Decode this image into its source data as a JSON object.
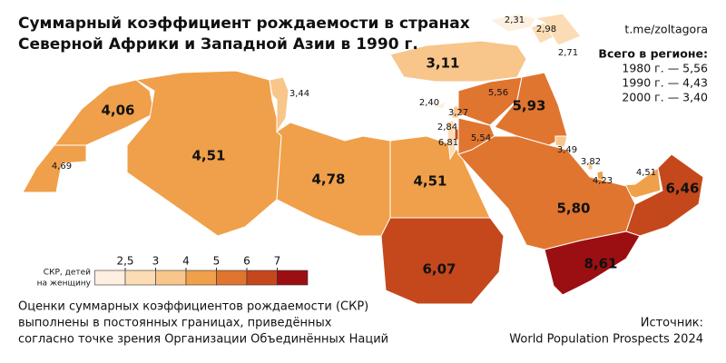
{
  "title": [
    "Суммарный коэффициент рождаемости в странах",
    "Северной Африки и Западной Азии в 1990 г."
  ],
  "handle": "t.me/zoltagora",
  "summary": {
    "heading": "Всего в регионе:",
    "lines": [
      "1980 г. — 5,56",
      "1990 г. — 4,43",
      "2000 г. — 3,40"
    ]
  },
  "regions": {
    "values": [
      4.69,
      4.06,
      4.51,
      3.44,
      4.78,
      4.51,
      6.07,
      3.11,
      2.31,
      2.98,
      2.71,
      2.4,
      3.27,
      2.84,
      6.81,
      5.54,
      5.56,
      5.93,
      3.49,
      3.82,
      4.23,
      4.51,
      5.8,
      6.46,
      8.61
    ],
    "value_labels": [
      "4,69",
      "4,06",
      "4,51",
      "3,44",
      "4,78",
      "4,51",
      "6,07",
      "3,11",
      "2,31",
      "2,98",
      "2,71",
      "2,40",
      "3,27",
      "2,84",
      "6,81",
      "5,54",
      "5,56",
      "5,93",
      "3,49",
      "3,82",
      "4,23",
      "4,51",
      "5,80",
      "6,46",
      "8,61"
    ]
  },
  "legend": {
    "title": [
      "СКР, детей",
      "на женщину"
    ],
    "ticks": [
      {
        "value": 2.5,
        "label": "2,5"
      },
      3,
      4,
      5,
      6,
      7
    ],
    "colors": [
      "#fdf0e0",
      "#fbdcb4",
      "#f8c68a",
      "#f0a04a",
      "#e07530",
      "#c4481b",
      "#9b0f12"
    ]
  },
  "note": [
    "Оценки суммарных коэффициентов рождаемости (СКР)",
    "выполнены в постоянных границах, приведённых",
    "согласно точке зрения Организации Объединённых Наций"
  ],
  "source": [
    "Источник:",
    "World Population Prospects 2024"
  ]
}
